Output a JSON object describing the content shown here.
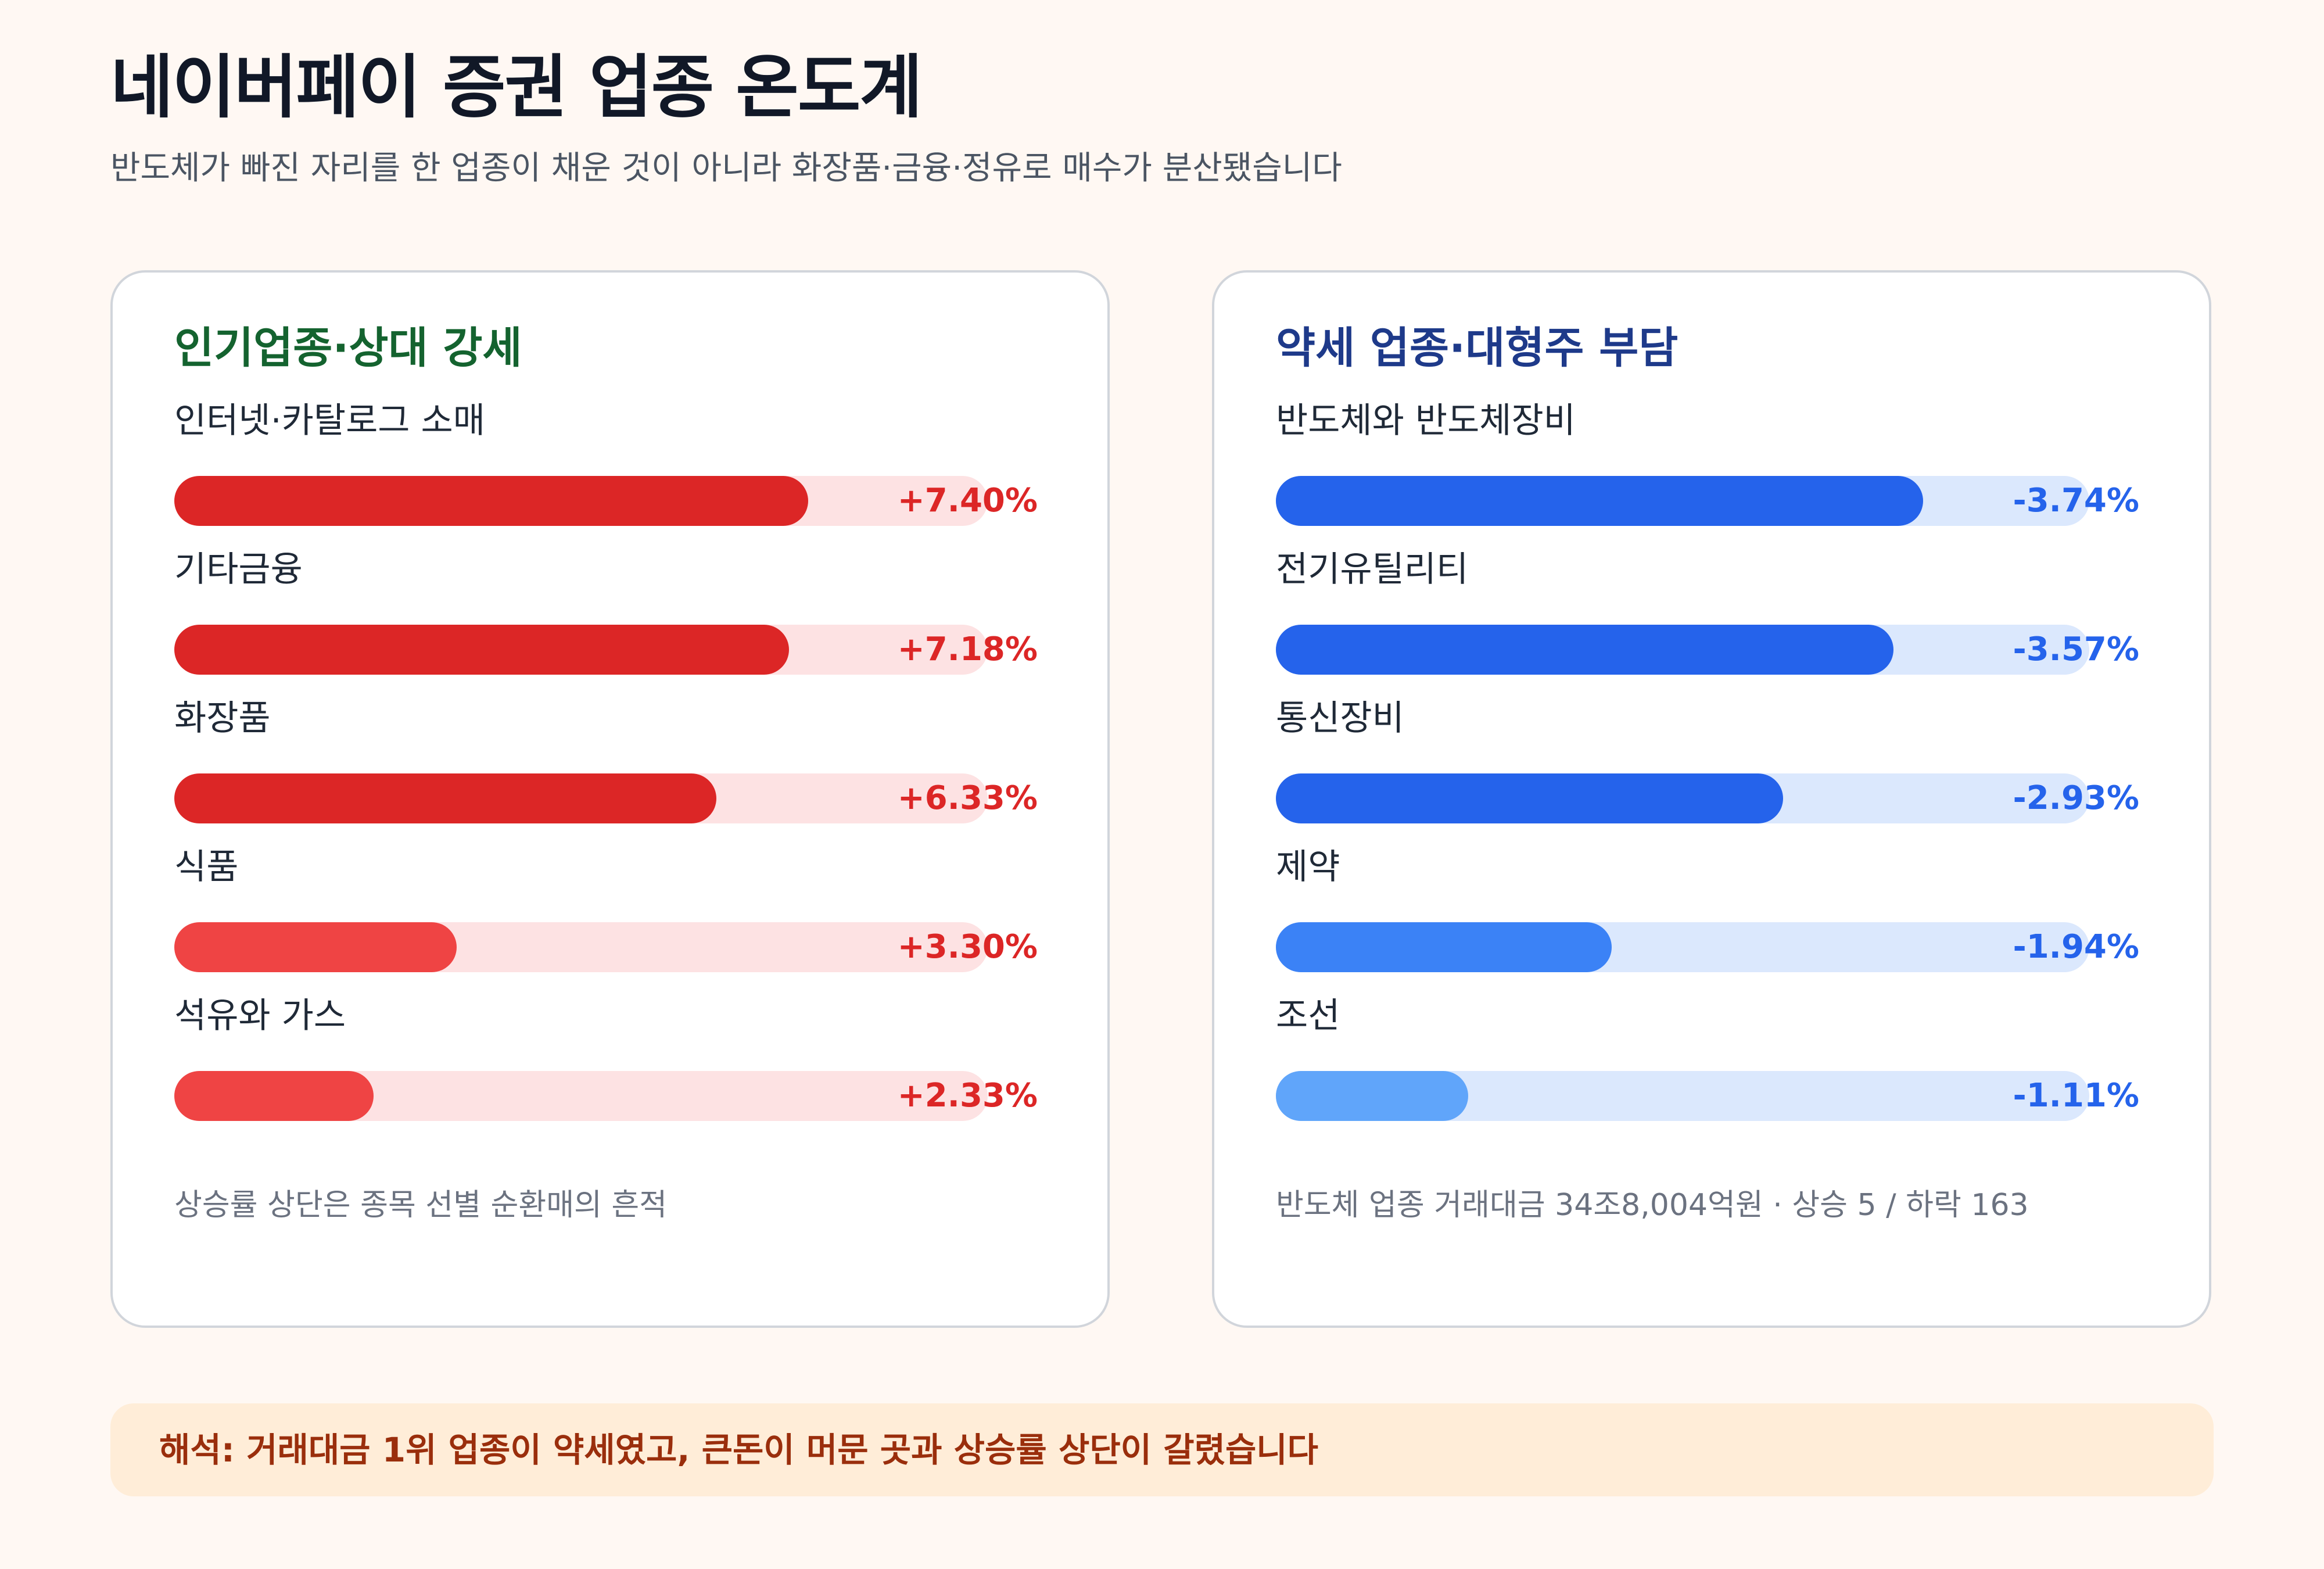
{
  "header": {
    "title": "네이버페이 증권 업종 온도계",
    "subtitle": "반도체가 빠진 자리를 한 업종이 채운 것이 아니라 화장품·금융·정유로 매수가 분산됐습니다"
  },
  "chart_data": [
    {
      "type": "bar",
      "title": "인기업종·상대 강세",
      "categories": [
        "인터넷·카탈로그 소매",
        "기타금융",
        "화장품",
        "식품",
        "석유와 가스"
      ],
      "values": [
        7.4,
        7.18,
        6.33,
        3.3,
        2.33
      ],
      "value_labels": [
        "+7.40%",
        "+7.18%",
        "+6.33%",
        "+3.30%",
        "+2.33%"
      ],
      "bar_colors": [
        "#dc2626",
        "#dc2626",
        "#dc2626",
        "#ef4444",
        "#ef4444"
      ],
      "track_color": "#fde2e3",
      "xlim": [
        0,
        9.5
      ],
      "note": "상승률 상단은 종목 선별 순환매의 흔적"
    },
    {
      "type": "bar",
      "title": "약세 업종·대형주 부담",
      "categories": [
        "반도체와 반도체장비",
        "전기유틸리티",
        "통신장비",
        "제약",
        "조선"
      ],
      "values": [
        -3.74,
        -3.57,
        -2.93,
        -1.94,
        -1.11
      ],
      "value_labels": [
        "-3.74%",
        "-3.57%",
        "-2.93%",
        "-1.94%",
        "-1.11%"
      ],
      "bar_colors": [
        "#2563eb",
        "#2563eb",
        "#2563eb",
        "#3b82f6",
        "#60a5fa"
      ],
      "track_color": "#dbe8fd",
      "xlim": [
        0,
        4.7
      ],
      "note": "반도체 업종 거래대금 34조8,004억원 · 상승 5 / 하락 163"
    }
  ],
  "banner": {
    "text": "해석: 거래대금 1위 업종이 약세였고, 큰돈이 머문 곳과 상승률 상단이 갈렸습니다"
  },
  "colors": {
    "background": "#fff8f3",
    "positive": "#dc2626",
    "negative": "#2563eb",
    "banner_bg": "#ffedd8",
    "banner_text": "#9a2e0c"
  }
}
